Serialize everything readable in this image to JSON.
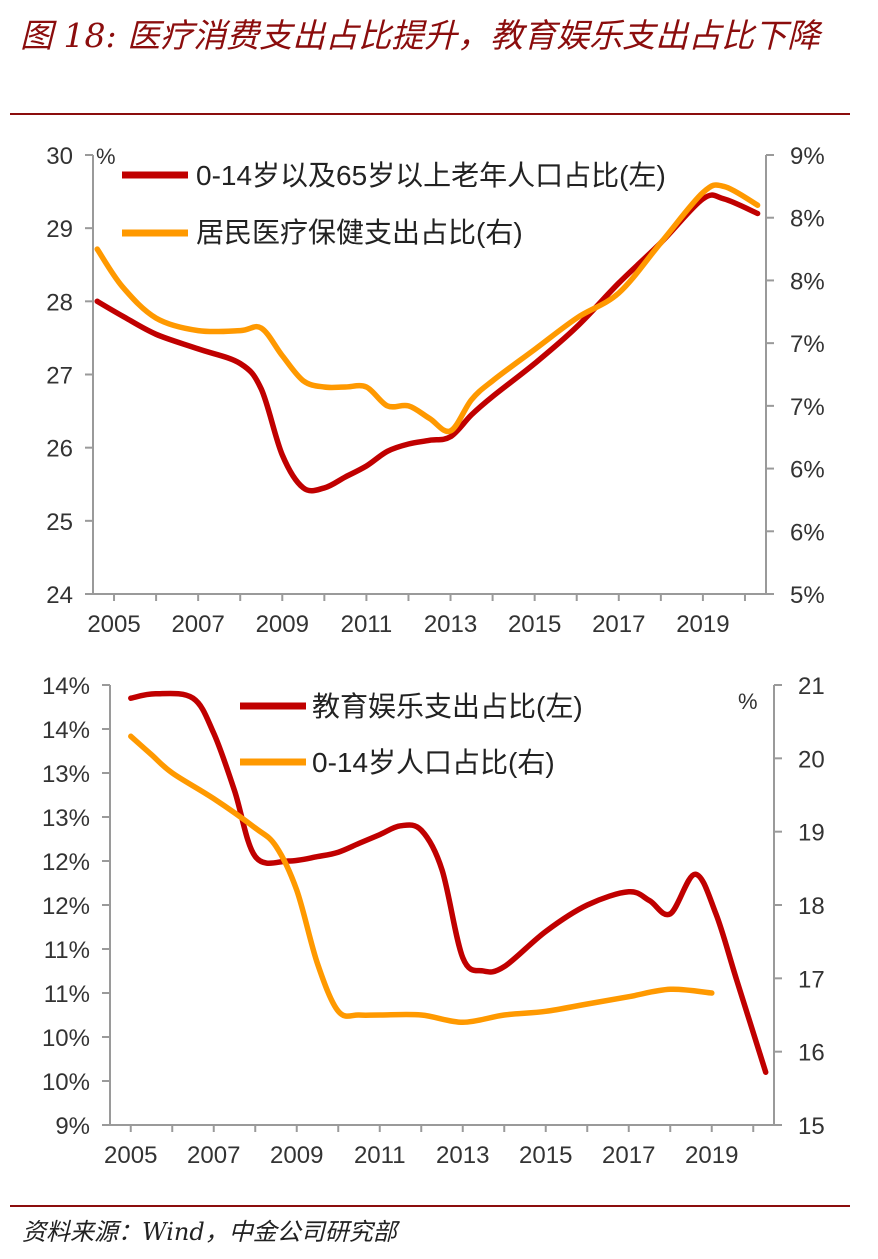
{
  "figure": {
    "title": "图 18: 医疗消费支出占比提升，教育娱乐支出占比下降",
    "source": "资料来源：Wind，中金公司研究部"
  },
  "colors": {
    "series1": "#c00000",
    "series2": "#ff9900",
    "accent": "#8b0d0d",
    "axis": "#9a9a9a"
  },
  "chart_data": [
    {
      "type": "line",
      "unit_left": "%",
      "x_ticks": [
        "2005",
        "2007",
        "2009",
        "2011",
        "2013",
        "2015",
        "2017",
        "2019"
      ],
      "xlim": [
        2004.5,
        2020.5
      ],
      "left_axis": {
        "ticks": [
          "24",
          "25",
          "26",
          "27",
          "28",
          "29",
          "30"
        ],
        "ylim": [
          24,
          30
        ]
      },
      "right_axis": {
        "ticks": [
          "5%",
          "6%",
          "6%",
          "7%",
          "7%",
          "8%",
          "8%",
          "9%"
        ],
        "ylim": [
          5,
          8.5
        ]
      },
      "series": [
        {
          "name": "0-14岁以及65岁以上老年人口占比(左)",
          "axis": "left",
          "color": "#c00000",
          "x": [
            2004.6,
            2005.2,
            2006,
            2007,
            2008,
            2008.5,
            2009,
            2009.5,
            2010,
            2010.5,
            2011,
            2011.5,
            2012,
            2012.5,
            2013,
            2013.5,
            2014,
            2015,
            2016,
            2017,
            2018,
            2019,
            2019.5,
            2020.3
          ],
          "values": [
            28.0,
            27.8,
            27.55,
            27.35,
            27.15,
            26.8,
            25.9,
            25.45,
            25.45,
            25.6,
            25.75,
            25.95,
            26.05,
            26.1,
            26.15,
            26.45,
            26.7,
            27.15,
            27.65,
            28.25,
            28.8,
            29.4,
            29.4,
            29.2
          ]
        },
        {
          "name": "居民医疗保健支出占比(右)",
          "axis": "right",
          "color": "#ff9900",
          "x": [
            2004.6,
            2005.2,
            2006,
            2007,
            2008,
            2008.5,
            2009,
            2009.5,
            2010,
            2010.5,
            2011,
            2011.5,
            2012,
            2012.5,
            2013,
            2013.5,
            2014,
            2015,
            2016,
            2017,
            2018,
            2019,
            2019.5,
            2020.3
          ],
          "values": [
            7.75,
            7.45,
            7.2,
            7.1,
            7.1,
            7.12,
            6.9,
            6.7,
            6.65,
            6.65,
            6.65,
            6.5,
            6.5,
            6.4,
            6.3,
            6.55,
            6.7,
            6.95,
            7.2,
            7.4,
            7.8,
            8.2,
            8.25,
            8.1
          ]
        }
      ]
    },
    {
      "type": "line",
      "unit_right": "%",
      "x_ticks": [
        "2005",
        "2007",
        "2009",
        "2011",
        "2013",
        "2015",
        "2017",
        "2019"
      ],
      "xlim": [
        2004.5,
        2020.5
      ],
      "left_axis": {
        "ticks": [
          "9%",
          "10%",
          "10%",
          "11%",
          "11%",
          "12%",
          "12%",
          "13%",
          "13%",
          "14%",
          "14%"
        ],
        "ylim": [
          9,
          14
        ]
      },
      "right_axis": {
        "ticks": [
          "15",
          "16",
          "17",
          "18",
          "19",
          "20",
          "21"
        ],
        "ylim": [
          15,
          21
        ]
      },
      "series": [
        {
          "name": "教育娱乐支出占比(左)",
          "axis": "left",
          "color": "#c00000",
          "x": [
            2005,
            2005.6,
            2006.5,
            2007,
            2007.5,
            2008,
            2008.8,
            2009.5,
            2010,
            2010.5,
            2011,
            2011.5,
            2012,
            2012.5,
            2013,
            2013.5,
            2014,
            2015,
            2016,
            2017,
            2017.5,
            2018,
            2018.6,
            2019.1,
            2019.6,
            2020.3
          ],
          "values": [
            13.85,
            13.9,
            13.85,
            13.45,
            12.8,
            12.05,
            12.0,
            12.05,
            12.1,
            12.2,
            12.3,
            12.4,
            12.35,
            11.9,
            10.9,
            10.75,
            10.8,
            11.2,
            11.5,
            11.65,
            11.55,
            11.4,
            11.85,
            11.4,
            10.65,
            9.6
          ]
        },
        {
          "name": "0-14岁人口占比(右)",
          "axis": "right",
          "color": "#ff9900",
          "x": [
            2005,
            2005.5,
            2006,
            2007,
            2008,
            2008.5,
            2009,
            2009.5,
            2010,
            2010.5,
            2011,
            2012,
            2013,
            2014,
            2015,
            2016,
            2017,
            2018,
            2019
          ],
          "values": [
            20.3,
            20.05,
            19.8,
            19.45,
            19.05,
            18.8,
            18.2,
            17.2,
            16.55,
            16.5,
            16.5,
            16.5,
            16.4,
            16.5,
            16.55,
            16.65,
            16.75,
            16.85,
            16.8
          ]
        }
      ]
    }
  ]
}
